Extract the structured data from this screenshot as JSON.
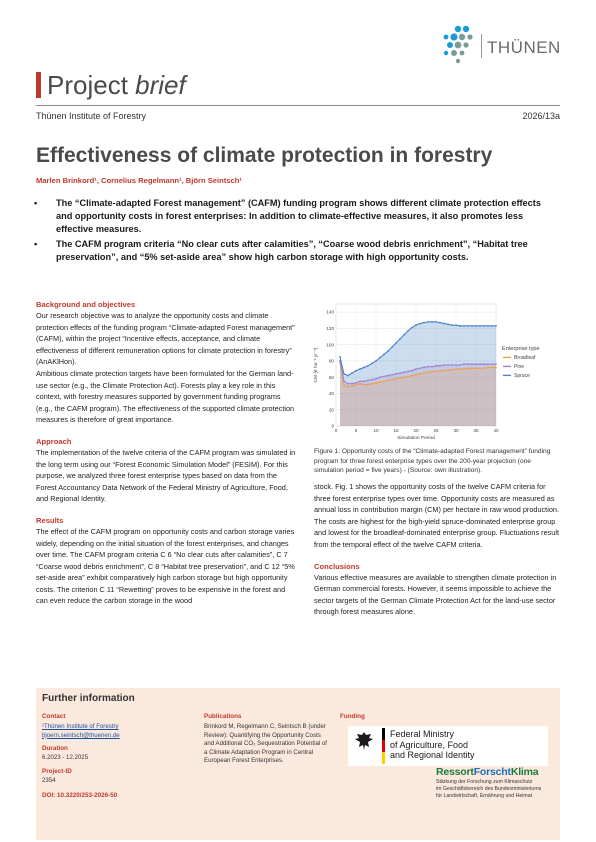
{
  "header": {
    "logo_text": "THÜNEN",
    "brief_word1": "Project",
    "brief_word2": "brief",
    "institute": "Thünen Institute of Forestry",
    "issue": "2026/13a"
  },
  "title": "Effectiveness of climate protection in forestry",
  "authors": "Marlen Brinkord¹, Cornelius Regelmann¹, Björn Seintsch¹",
  "bullets": [
    "The “Climate-adapted Forest management” (CAFM) funding program shows different climate protection effects and opportunity costs in forest enterprises: In addition to climate-effective measures, it also promotes less effective measures.",
    "The CAFM program criteria “No clear cuts after calamities”, “Coarse wood debris enrichment”, “Habitat tree preservation”, and “5% set-aside area” show high carbon storage with high opportunity costs."
  ],
  "sections": {
    "background": {
      "heading": "Background and objectives",
      "p1": "Our research objective was to analyze the opportunity costs and climate protection effects of the funding program “Climate-adapted Forest management” (CAFM), within the project “Incentive effects, acceptance, and climate effectiveness of different remuneration options for climate protection in forestry” (AnAKlHon).",
      "p2": "Ambitious climate protection targets have been formulated for the German land-use sector (e.g., the Climate Protection Act). Forests play a key role in this context, with forestry measures supported by government funding programs (e.g., the CAFM program). The effectiveness of the supported climate protection measures is therefore of great importance."
    },
    "approach": {
      "heading": "Approach",
      "p1": "The implementation of the twelve criteria of the CAFM program was simulated in the long term using our “Forest Economic Simulation Model” (FESIM). For this purpose, we analyzed three forest enterprise types based on data from the Forest Accountancy Data Network of the Federal Ministry of Agriculture, Food, and Regional Identity."
    },
    "results": {
      "heading": "Results",
      "p1": "The effect of the CAFM program on opportunity costs and carbon storage varies widely, depending on the initial situation of the forest enterprises, and changes over time. The CAFM program criteria C 6 “No clear cuts after calamities”, C 7 “Coarse wood debris enrichment”, C 8 “Habitat tree preservation”, and C 12 “5% set-aside area” exhibit comparatively high carbon storage but high opportunity costs. The criterion C 11 “Rewetting” proves to be expensive in the forest and can even reduce the carbon storage in the wood",
      "p2": "stock. Fig. 1 shows the opportunity costs of the twelve CAFM criteria for three forest enterprise types over time. Opportunity costs are measured as annual loss in contribution margin (CM) per hectare in raw wood production. The costs are highest for the high-yield spruce-dominated enterprise group and lowest for the broadleaf-dominated enterprise group. Fluctuations result from the temporal effect of the twelve CAFM criteria."
    },
    "conclusions": {
      "heading": "Conclusions",
      "p1": "Various effective measures are available to strengthen climate protection in German commercial forests. However, it seems impossible to achieve the sector targets of the German Climate Protection Act for the land-use sector through forest measures alone."
    }
  },
  "figure": {
    "caption": "Figure 1: Opportunity costs of the “Climate-adapted Forest management” funding program for three forest enterprise types over the 200-year projection (one simulation period = five years) - (Source: own illustration)."
  },
  "chart_data": {
    "type": "area",
    "xlabel": "Simulation Period",
    "ylabel": "CM (€ ha⁻¹ yr⁻¹)",
    "x_ticks": [
      0,
      5,
      10,
      15,
      20,
      25,
      30,
      35,
      40
    ],
    "y_ticks": [
      0,
      20,
      40,
      60,
      80,
      100,
      120,
      140
    ],
    "xlim": [
      0,
      40
    ],
    "ylim": [
      0,
      150
    ],
    "legend_title": "Enterprise type",
    "legend_position": "right",
    "x": [
      1,
      2,
      3,
      4,
      5,
      6,
      7,
      8,
      9,
      10,
      11,
      12,
      13,
      14,
      15,
      16,
      17,
      18,
      19,
      20,
      21,
      22,
      23,
      24,
      25,
      26,
      27,
      28,
      29,
      30,
      31,
      32,
      33,
      34,
      35,
      36,
      37,
      38,
      39,
      40
    ],
    "series": [
      {
        "name": "Broadleaf",
        "color": "#f0a04b",
        "values": [
          78,
          50,
          48,
          49,
          51,
          52,
          51,
          51,
          52,
          53,
          54,
          55,
          56,
          57,
          58,
          59,
          60,
          61,
          62,
          63,
          64,
          65,
          66,
          67,
          67,
          68,
          68,
          69,
          69,
          70,
          70,
          70,
          71,
          71,
          71,
          71,
          71,
          72,
          72,
          72
        ]
      },
      {
        "name": "Pine",
        "color": "#9d84c8",
        "values": [
          80,
          55,
          52,
          52,
          53,
          55,
          55,
          56,
          57,
          58,
          60,
          61,
          62,
          63,
          64,
          65,
          66,
          67,
          68,
          70,
          71,
          72,
          73,
          73,
          74,
          74,
          75,
          75,
          75,
          75,
          75,
          76,
          76,
          76,
          76,
          76,
          76,
          76,
          76,
          76
        ]
      },
      {
        "name": "Spruce",
        "color": "#4a86c8",
        "values": [
          85,
          64,
          62,
          65,
          68,
          70,
          72,
          74,
          77,
          80,
          84,
          88,
          92,
          97,
          102,
          107,
          112,
          117,
          121,
          124,
          126,
          127,
          128,
          128,
          128,
          127,
          126,
          125,
          124,
          124,
          123,
          123,
          123,
          123,
          123,
          123,
          123,
          123,
          123,
          123
        ]
      }
    ]
  },
  "footer": {
    "heading": "Further information",
    "contact_label": "Contact",
    "contact_line1": "¹Thünen Institute of Forestry",
    "contact_line2": "bjoern.seintsch@thuenen.de",
    "duration_label": "Duration",
    "duration": "6.2023 - 12.2025",
    "project_id_label": "Project-ID",
    "project_id": "2354",
    "doi": "DOI: 10.3220/253-2026-50",
    "publications_label": "Publications",
    "publications": "Brinkord M, Regelmann C, Seintsch B (under Review): Quantifying the Opportunity Costs and Additional CO₂ Sequestration Potential of a Climate Adaptation Program in Central European Forest Enterprises.",
    "funding_label": "Funding",
    "ministry": [
      "Federal Ministry",
      "of Agriculture, Food",
      "and Regional Identity"
    ],
    "rfk_part1": "Ressort",
    "rfk_part2": "Forscht",
    "rfk_part3": "Klima",
    "rfk_sub": [
      "Stärkung der Forschung zum Klimaschutz",
      "im Geschäftsbereich des Bundesministeriums",
      "für Landwirtschaft, Ernährung und Heimat"
    ]
  }
}
